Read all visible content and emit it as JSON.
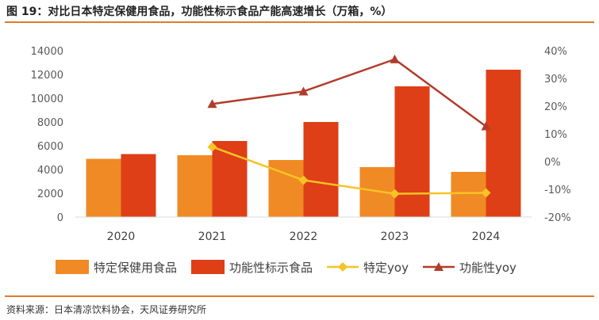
{
  "figure": {
    "title": "图 19：对比日本特定保健用食品，功能性标示食品产能高速增长（万箱，%）",
    "source": "资料来源：日本清凉饮料协会，天风证券研究所"
  },
  "chart_data": {
    "type": "bar",
    "categories": [
      "2020",
      "2021",
      "2022",
      "2023",
      "2024"
    ],
    "series": [
      {
        "name": "特定保健用食品",
        "type": "bar",
        "axis": "left",
        "color": "#f08a24",
        "values": [
          4900,
          5200,
          4800,
          4200,
          3800
        ]
      },
      {
        "name": "功能性标示食品",
        "type": "bar",
        "axis": "left",
        "color": "#de3f16",
        "values": [
          5300,
          6400,
          8000,
          11000,
          12400
        ]
      },
      {
        "name": "特定yoy",
        "type": "line",
        "marker": "diamond",
        "axis": "right",
        "color": "#f7c325",
        "values": [
          null,
          5.3,
          -6.7,
          -11.6,
          -11.3
        ]
      },
      {
        "name": "功能性yoy",
        "type": "line",
        "marker": "triangle",
        "axis": "right",
        "color": "#b23c2b",
        "values": [
          null,
          20.8,
          25.3,
          36.9,
          12.7
        ]
      }
    ],
    "ylim_left": [
      0,
      14000
    ],
    "yticks_left": [
      "0",
      "2000",
      "4000",
      "6000",
      "8000",
      "10000",
      "12000",
      "14000"
    ],
    "ylim_right": [
      -20,
      40
    ],
    "yticks_right": [
      "-20%",
      "-10%",
      "0%",
      "10%",
      "20%",
      "30%",
      "40%"
    ],
    "legend_position": "bottom",
    "grid": false
  }
}
